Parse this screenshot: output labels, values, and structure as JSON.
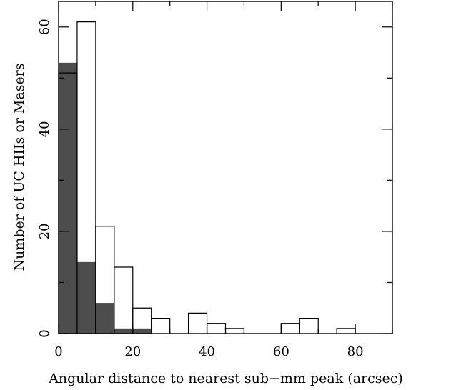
{
  "chart_data": {
    "type": "bar",
    "xlabel": "Angular distance to nearest sub−mm peak (arcsec)",
    "ylabel": "Number of UC HIIs or Masers",
    "xlim": [
      0,
      90
    ],
    "ylim": [
      0,
      65
    ],
    "xticks": [
      0,
      20,
      40,
      60,
      80
    ],
    "yticks": [
      0,
      20,
      40,
      60
    ],
    "bin_width": 5,
    "grid": false,
    "series": [
      {
        "style": "outline",
        "color": "#000000",
        "bins": [
          {
            "x0": 0,
            "value": 51
          },
          {
            "x0": 5,
            "value": 61
          },
          {
            "x0": 10,
            "value": 21
          },
          {
            "x0": 15,
            "value": 13
          },
          {
            "x0": 20,
            "value": 5
          },
          {
            "x0": 25,
            "value": 3
          },
          {
            "x0": 30,
            "value": 0
          },
          {
            "x0": 35,
            "value": 4
          },
          {
            "x0": 40,
            "value": 2
          },
          {
            "x0": 45,
            "value": 1
          },
          {
            "x0": 50,
            "value": 0
          },
          {
            "x0": 55,
            "value": 0
          },
          {
            "x0": 60,
            "value": 2
          },
          {
            "x0": 65,
            "value": 3
          },
          {
            "x0": 70,
            "value": 0
          },
          {
            "x0": 75,
            "value": 1
          },
          {
            "x0": 80,
            "value": 0
          },
          {
            "x0": 85,
            "value": 0
          }
        ]
      },
      {
        "style": "filled",
        "color": "#4d4d4d",
        "bins": [
          {
            "x0": 0,
            "value": 53
          },
          {
            "x0": 5,
            "value": 14
          },
          {
            "x0": 10,
            "value": 6
          },
          {
            "x0": 15,
            "value": 1
          },
          {
            "x0": 20,
            "value": 1
          }
        ]
      }
    ]
  }
}
